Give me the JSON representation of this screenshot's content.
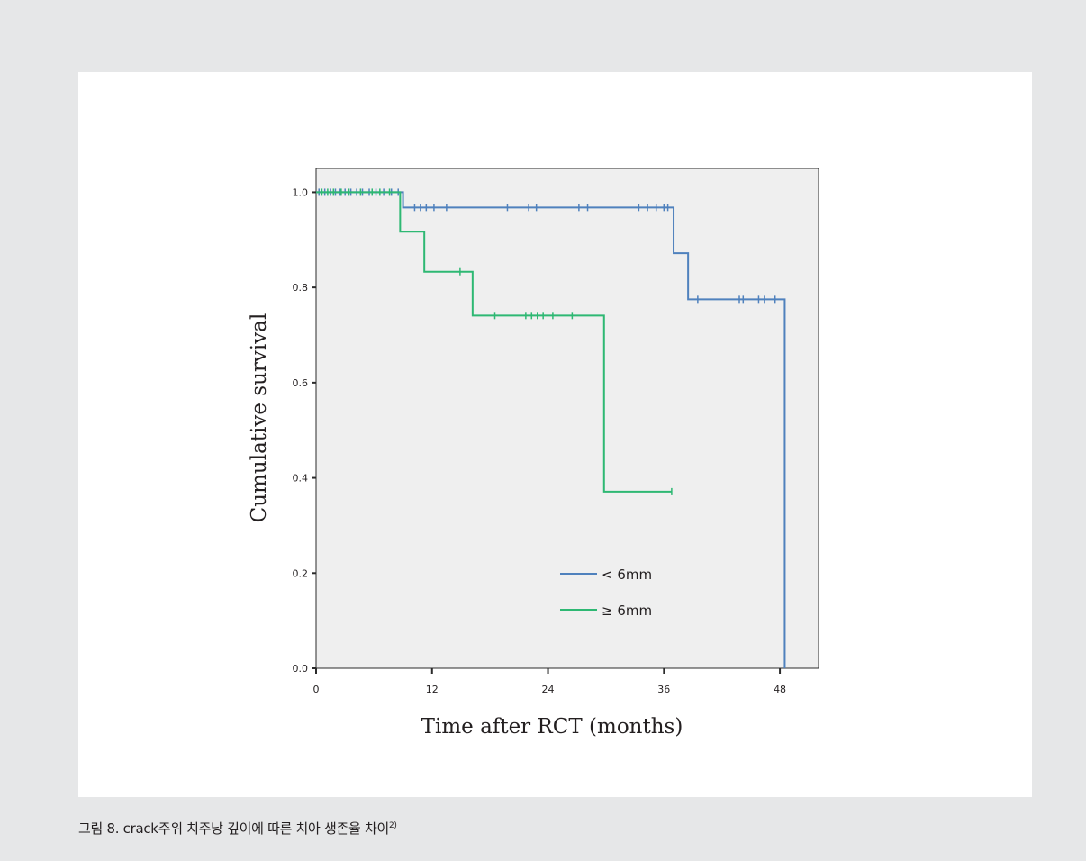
{
  "chart_data": {
    "type": "line",
    "subtype": "kaplan-meier-step",
    "xlabel": "Time after RCT (months)",
    "ylabel": "Cumulative survival",
    "xlim": [
      0,
      52
    ],
    "ylim": [
      0,
      1.05
    ],
    "x_ticks": [
      "0",
      "12",
      "24",
      "36",
      "48"
    ],
    "x_tick_values": [
      0,
      12,
      24,
      36,
      48
    ],
    "y_ticks": [
      "0.0",
      "0.2",
      "0.4",
      "0.6",
      "0.8",
      "1.0"
    ],
    "y_tick_values": [
      0.0,
      0.2,
      0.4,
      0.6,
      0.8,
      1.0
    ],
    "grid": false,
    "legend_position": "bottom-right",
    "series": [
      {
        "name": "< 6mm",
        "color": "#4f81bd",
        "steps": [
          [
            0,
            1.0
          ],
          [
            9,
            0.968
          ],
          [
            37,
            0.872
          ],
          [
            38.5,
            0.775
          ],
          [
            48.5,
            0.0
          ]
        ],
        "censored": [
          [
            0.3,
            1.0
          ],
          [
            0.9,
            1.0
          ],
          [
            1.5,
            1.0
          ],
          [
            2.0,
            1.0
          ],
          [
            2.5,
            1.0
          ],
          [
            3.0,
            1.0
          ],
          [
            3.6,
            1.0
          ],
          [
            4.2,
            1.0
          ],
          [
            4.8,
            1.0
          ],
          [
            5.5,
            1.0
          ],
          [
            6.2,
            1.0
          ],
          [
            7.0,
            1.0
          ],
          [
            7.8,
            1.0
          ],
          [
            8.5,
            1.0
          ],
          [
            10.2,
            0.968
          ],
          [
            10.8,
            0.968
          ],
          [
            11.4,
            0.968
          ],
          [
            12.2,
            0.968
          ],
          [
            13.5,
            0.968
          ],
          [
            19.8,
            0.968
          ],
          [
            22.0,
            0.968
          ],
          [
            22.8,
            0.968
          ],
          [
            27.2,
            0.968
          ],
          [
            28.1,
            0.968
          ],
          [
            33.4,
            0.968
          ],
          [
            34.3,
            0.968
          ],
          [
            35.2,
            0.968
          ],
          [
            36.0,
            0.968
          ],
          [
            36.4,
            0.968
          ],
          [
            39.5,
            0.775
          ],
          [
            43.8,
            0.775
          ],
          [
            44.2,
            0.775
          ],
          [
            45.8,
            0.775
          ],
          [
            46.4,
            0.775
          ],
          [
            47.5,
            0.775
          ]
        ]
      },
      {
        "name": "≥ 6mm",
        "color": "#2eb873",
        "steps": [
          [
            0,
            1.0
          ],
          [
            8.7,
            0.917
          ],
          [
            11.2,
            0.833
          ],
          [
            16.2,
            0.741
          ],
          [
            29.8,
            0.371
          ]
        ],
        "censored": [
          [
            0.6,
            1.0
          ],
          [
            1.2,
            1.0
          ],
          [
            1.8,
            1.0
          ],
          [
            2.6,
            1.0
          ],
          [
            3.4,
            1.0
          ],
          [
            4.6,
            1.0
          ],
          [
            5.8,
            1.0
          ],
          [
            6.6,
            1.0
          ],
          [
            7.6,
            1.0
          ],
          [
            14.9,
            0.833
          ],
          [
            18.5,
            0.741
          ],
          [
            21.7,
            0.741
          ],
          [
            22.3,
            0.741
          ],
          [
            22.9,
            0.741
          ],
          [
            23.5,
            0.741
          ],
          [
            24.5,
            0.741
          ],
          [
            26.5,
            0.741
          ],
          [
            36.8,
            0.371
          ]
        ],
        "end_x": 36.8
      }
    ]
  },
  "caption": {
    "text": "그림 8. crack주위 치주낭 깊이에 따른 치아 생존율 차이",
    "ref": "2)"
  }
}
